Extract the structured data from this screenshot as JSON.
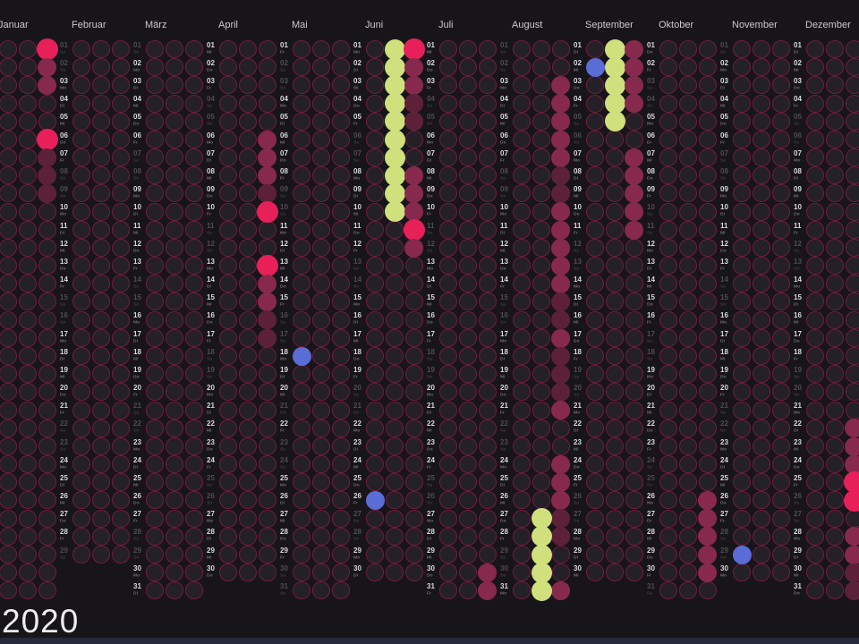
{
  "title": "2020",
  "weekday_names": [
    "Mo",
    "Di",
    "Mi",
    "Do",
    "Fr",
    "Sa",
    "So"
  ],
  "colors": {
    "background": "#18151a",
    "circle_fill": "#232027",
    "circle_outline": "#7c1c40",
    "dot_maroon": "#87294d",
    "dot_maroon_dim": "#5c2139",
    "dot_pink": "#e72059",
    "dot_green": "#cfe07c",
    "dot_blue": "#5a6cd6",
    "day_number": "#d9d9dd",
    "day_number_dim": "#4e4b54",
    "month_label": "#c9c9ce",
    "title_color": "#ededf0",
    "bottom_bar": "#262939"
  },
  "months": [
    {
      "name": "Januar",
      "days": 31,
      "first_weekday": 2,
      "dim_days": [
        4,
        5,
        11,
        12,
        18,
        19,
        25,
        26
      ],
      "dots": [
        [
          1,
          3,
          "pink"
        ],
        [
          2,
          3,
          "maroon"
        ],
        [
          3,
          3,
          "maroon"
        ],
        [
          6,
          3,
          "pink"
        ],
        [
          7,
          3,
          "maroon_dim"
        ],
        [
          8,
          3,
          "maroon_dim"
        ],
        [
          9,
          3,
          "maroon_dim"
        ]
      ]
    },
    {
      "name": "Februar",
      "days": 29,
      "first_weekday": 5,
      "dim_days": [
        1,
        2,
        8,
        9,
        15,
        16,
        22,
        23,
        29
      ],
      "dots": []
    },
    {
      "name": "März",
      "days": 31,
      "first_weekday": 6,
      "dim_days": [
        1,
        7,
        8,
        14,
        15,
        21,
        22,
        28,
        29
      ],
      "dots": []
    },
    {
      "name": "April",
      "days": 30,
      "first_weekday": 2,
      "dim_days": [
        4,
        5,
        11,
        12,
        18,
        19,
        25,
        26
      ],
      "dots": [
        [
          6,
          3,
          "maroon"
        ],
        [
          7,
          3,
          "maroon"
        ],
        [
          8,
          3,
          "maroon"
        ],
        [
          9,
          3,
          "maroon_dim"
        ],
        [
          10,
          3,
          "pink"
        ],
        [
          13,
          3,
          "pink"
        ],
        [
          14,
          3,
          "maroon"
        ],
        [
          15,
          3,
          "maroon"
        ],
        [
          16,
          3,
          "maroon_dim"
        ],
        [
          17,
          3,
          "maroon_dim"
        ]
      ]
    },
    {
      "name": "Mai",
      "days": 31,
      "first_weekday": 4,
      "dim_days": [
        2,
        3,
        9,
        10,
        16,
        17,
        21,
        23,
        24,
        30,
        31
      ],
      "dots": [
        [
          18,
          1,
          "blue"
        ]
      ]
    },
    {
      "name": "Juni",
      "days": 30,
      "first_weekday": 0,
      "dim_days": [
        6,
        7,
        13,
        14,
        20,
        21,
        27,
        28
      ],
      "dots": [
        [
          1,
          2,
          "green"
        ],
        [
          2,
          2,
          "green"
        ],
        [
          3,
          2,
          "green"
        ],
        [
          4,
          2,
          "green"
        ],
        [
          5,
          2,
          "green"
        ],
        [
          6,
          2,
          "green"
        ],
        [
          7,
          2,
          "green"
        ],
        [
          8,
          2,
          "green"
        ],
        [
          9,
          2,
          "green"
        ],
        [
          10,
          2,
          "green"
        ],
        [
          1,
          3,
          "pink"
        ],
        [
          2,
          3,
          "maroon"
        ],
        [
          3,
          3,
          "maroon"
        ],
        [
          4,
          3,
          "maroon_dim"
        ],
        [
          5,
          3,
          "maroon_dim"
        ],
        [
          8,
          3,
          "maroon"
        ],
        [
          9,
          3,
          "maroon"
        ],
        [
          10,
          3,
          "maroon"
        ],
        [
          11,
          3,
          "pink"
        ],
        [
          12,
          3,
          "maroon"
        ],
        [
          26,
          1,
          "blue"
        ]
      ]
    },
    {
      "name": "Juli",
      "days": 31,
      "first_weekday": 2,
      "dim_days": [
        4,
        5,
        11,
        12,
        18,
        19,
        25,
        26
      ],
      "dots": [
        [
          30,
          3,
          "maroon"
        ],
        [
          31,
          3,
          "maroon"
        ]
      ]
    },
    {
      "name": "August",
      "days": 31,
      "first_weekday": 5,
      "dim_days": [
        1,
        2,
        8,
        9,
        15,
        16,
        22,
        23,
        29,
        30
      ],
      "dots": [
        [
          3,
          3,
          "maroon"
        ],
        [
          4,
          3,
          "maroon"
        ],
        [
          5,
          3,
          "maroon"
        ],
        [
          6,
          3,
          "maroon"
        ],
        [
          7,
          3,
          "maroon"
        ],
        [
          8,
          3,
          "maroon_dim"
        ],
        [
          9,
          3,
          "maroon_dim"
        ],
        [
          10,
          3,
          "maroon"
        ],
        [
          11,
          3,
          "maroon"
        ],
        [
          12,
          3,
          "maroon"
        ],
        [
          13,
          3,
          "maroon"
        ],
        [
          14,
          3,
          "maroon"
        ],
        [
          15,
          3,
          "maroon_dim"
        ],
        [
          16,
          3,
          "maroon_dim"
        ],
        [
          17,
          3,
          "maroon"
        ],
        [
          18,
          3,
          "maroon_dim"
        ],
        [
          19,
          3,
          "maroon_dim"
        ],
        [
          20,
          3,
          "maroon_dim"
        ],
        [
          21,
          3,
          "maroon"
        ],
        [
          24,
          3,
          "maroon"
        ],
        [
          25,
          3,
          "maroon"
        ],
        [
          26,
          3,
          "maroon"
        ],
        [
          27,
          3,
          "maroon_dim"
        ],
        [
          28,
          3,
          "maroon_dim"
        ],
        [
          31,
          3,
          "maroon"
        ],
        [
          27,
          2,
          "green"
        ],
        [
          28,
          2,
          "green"
        ],
        [
          29,
          2,
          "green"
        ],
        [
          30,
          2,
          "green"
        ],
        [
          31,
          2,
          "green"
        ]
      ]
    },
    {
      "name": "September",
      "days": 30,
      "first_weekday": 1,
      "dim_days": [
        5,
        6,
        12,
        13,
        19,
        20,
        26,
        27
      ],
      "dots": [
        [
          2,
          1,
          "blue"
        ],
        [
          1,
          2,
          "green"
        ],
        [
          2,
          2,
          "green"
        ],
        [
          3,
          2,
          "green"
        ],
        [
          4,
          2,
          "green"
        ],
        [
          5,
          2,
          "green"
        ],
        [
          1,
          3,
          "maroon"
        ],
        [
          2,
          3,
          "maroon"
        ],
        [
          3,
          3,
          "maroon"
        ],
        [
          4,
          3,
          "maroon"
        ],
        [
          7,
          3,
          "maroon"
        ],
        [
          8,
          3,
          "maroon"
        ],
        [
          9,
          3,
          "maroon"
        ],
        [
          10,
          3,
          "maroon"
        ],
        [
          11,
          3,
          "maroon"
        ]
      ]
    },
    {
      "name": "Oktober",
      "days": 31,
      "first_weekday": 3,
      "dim_days": [
        3,
        4,
        10,
        11,
        17,
        18,
        24,
        25,
        31
      ],
      "dots": [
        [
          26,
          3,
          "maroon"
        ],
        [
          27,
          3,
          "maroon"
        ],
        [
          28,
          3,
          "maroon"
        ],
        [
          29,
          3,
          "maroon"
        ],
        [
          30,
          3,
          "maroon"
        ]
      ]
    },
    {
      "name": "November",
      "days": 30,
      "first_weekday": 6,
      "dim_days": [
        1,
        7,
        8,
        14,
        15,
        21,
        22,
        28,
        29
      ],
      "dots": [
        [
          29,
          1,
          "blue"
        ]
      ]
    },
    {
      "name": "Dezember",
      "days": 31,
      "first_weekday": 1,
      "dim_days": [
        5,
        6,
        12,
        13,
        19,
        20,
        26,
        27
      ],
      "dots": [
        [
          22,
          3,
          "maroon"
        ],
        [
          23,
          3,
          "maroon"
        ],
        [
          24,
          3,
          "maroon"
        ],
        [
          25,
          3,
          "pink"
        ],
        [
          26,
          3,
          "pink"
        ],
        [
          28,
          3,
          "maroon"
        ],
        [
          29,
          3,
          "maroon"
        ],
        [
          30,
          3,
          "maroon_dim"
        ],
        [
          31,
          3,
          "maroon_dim"
        ]
      ]
    }
  ]
}
